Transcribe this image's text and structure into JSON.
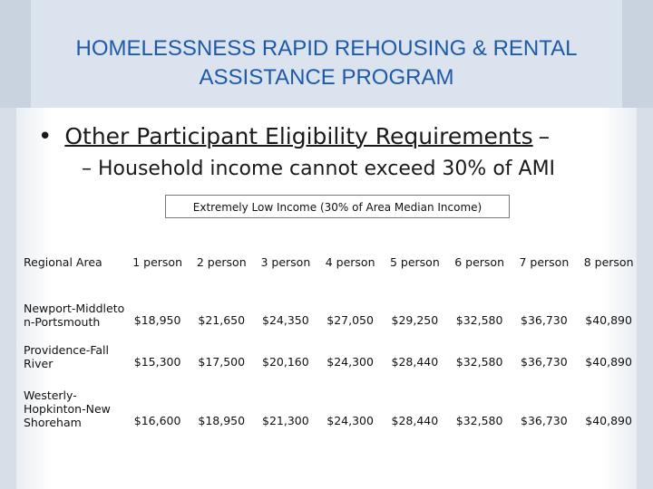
{
  "slide": {
    "title": "HOMELESSNESS RAPID REHOUSING & RENTAL ASSISTANCE PROGRAM",
    "bullet_symbol": "•",
    "bullet_main": "Other Participant Eligibility Requirements",
    "bullet_tail": "–",
    "sub_bullet": "– Household income cannot exceed 30% of AMI"
  },
  "table": {
    "caption": "Extremely Low Income (30% of Area Median Income)",
    "headers": [
      "Regional Area",
      "1 person",
      "2 person",
      "3 person",
      "4 person",
      "5 person",
      "6 person",
      "7 person",
      "8 person"
    ],
    "rows": [
      {
        "area": "Newport-Middleton-Portsmouth",
        "values": [
          "$18,950",
          "$21,650",
          "$24,350",
          "$27,050",
          "$29,250",
          "$32,580",
          "$36,730",
          "$40,890"
        ]
      },
      {
        "area": "Providence-Fall River",
        "values": [
          "$15,300",
          "$17,500",
          "$20,160",
          "$24,300",
          "$28,440",
          "$32,580",
          "$36,730",
          "$40,890"
        ]
      },
      {
        "area": "Westerly-Hopkinton-New Shoreham",
        "values": [
          "$16,600",
          "$18,950",
          "$21,300",
          "$24,300",
          "$28,440",
          "$32,580",
          "$36,730",
          "$40,890"
        ]
      }
    ]
  },
  "colors": {
    "title": "#1f5aa6",
    "header_band": "#dbe3ee",
    "text": "#111111"
  }
}
